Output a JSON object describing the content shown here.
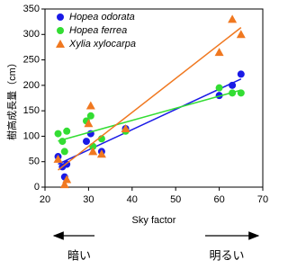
{
  "chart_data": {
    "type": "scatter",
    "x_label": "Sky factor",
    "y_label": "樹高成長量（cm）",
    "xlim": [
      20,
      70
    ],
    "xticks": [
      20,
      30,
      40,
      50,
      60,
      70
    ],
    "ylim": [
      0,
      350
    ],
    "yticks": [
      0,
      50,
      100,
      150,
      200,
      250,
      300,
      350
    ],
    "grid": false,
    "legend": "upper left",
    "trendline": true,
    "series": [
      {
        "name": "Hopea odorata",
        "color": "#1a1ae6",
        "marker": "circle",
        "x": [
          23,
          24,
          24.5,
          25,
          29.5,
          30.5,
          33,
          38.5,
          60,
          63,
          65
        ],
        "values": [
          60,
          40,
          20,
          45,
          90,
          105,
          70,
          115,
          180,
          200,
          222
        ]
      },
      {
        "name": "Hopea ferrea",
        "color": "#33dd33",
        "marker": "circle",
        "x": [
          23,
          24,
          24.5,
          25,
          29.5,
          30.5,
          31,
          33,
          38.5,
          60,
          63,
          65
        ],
        "values": [
          105,
          90,
          70,
          110,
          130,
          140,
          80,
          95,
          110,
          195,
          185,
          185
        ]
      },
      {
        "name": "Xylia xylocarpa",
        "color": "#f07820",
        "marker": "triangle",
        "x": [
          23,
          24.5,
          25,
          30,
          30.5,
          31,
          33,
          38.5,
          60,
          63,
          65
        ],
        "values": [
          55,
          5,
          15,
          125,
          160,
          70,
          65,
          115,
          265,
          330,
          300
        ]
      }
    ],
    "annotations": [
      "暗い",
      "明るい"
    ]
  }
}
